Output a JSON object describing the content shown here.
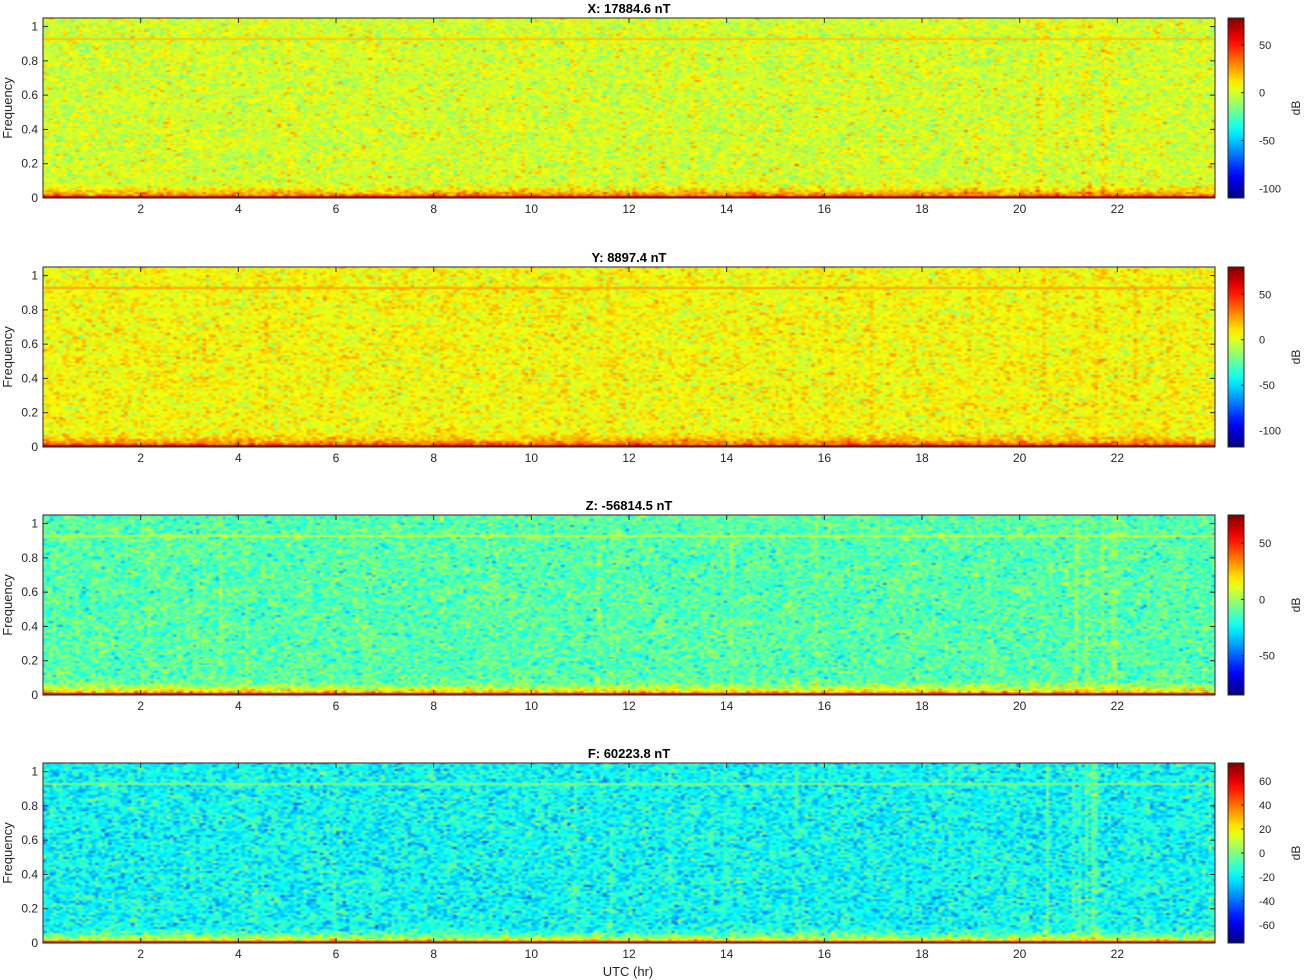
{
  "figure": {
    "shared_xlabel": "UTC (hr)"
  },
  "colormap": "jet",
  "chart_data": [
    {
      "type": "heatmap",
      "title": "X: 17884.6 nT",
      "xlabel": "",
      "ylabel": "Frequency",
      "colorbar_label": "dB",
      "x_range": [
        0,
        24
      ],
      "y_range": [
        0,
        1.05
      ],
      "x_ticks": [
        2,
        4,
        6,
        8,
        10,
        12,
        14,
        16,
        18,
        20,
        22
      ],
      "y_ticks": [
        0,
        0.2,
        0.4,
        0.6,
        0.8,
        1
      ],
      "clim": [
        -110,
        78
      ],
      "colorbar_ticks": [
        -100,
        -50,
        0,
        50
      ],
      "background_level_db": 0,
      "low_frequency_level_db": 45,
      "line_frequency": 0.93
    },
    {
      "type": "heatmap",
      "title": "Y: 8897.4 nT",
      "xlabel": "",
      "ylabel": "Frequency",
      "colorbar_label": "dB",
      "x_range": [
        0,
        24
      ],
      "y_range": [
        0,
        1.05
      ],
      "x_ticks": [
        2,
        4,
        6,
        8,
        10,
        12,
        14,
        16,
        18,
        20,
        22
      ],
      "y_ticks": [
        0,
        0.2,
        0.4,
        0.6,
        0.8,
        1
      ],
      "clim": [
        -118,
        80
      ],
      "colorbar_ticks": [
        -100,
        -50,
        0,
        50
      ],
      "background_level_db": 5,
      "low_frequency_level_db": 48,
      "line_frequency": 0.93
    },
    {
      "type": "heatmap",
      "title": "Z: -56814.5 nT",
      "xlabel": "",
      "ylabel": "Frequency",
      "colorbar_label": "dB",
      "x_range": [
        0,
        24
      ],
      "y_range": [
        0,
        1.05
      ],
      "x_ticks": [
        2,
        4,
        6,
        8,
        10,
        12,
        14,
        16,
        18,
        20,
        22
      ],
      "y_ticks": [
        0,
        0.2,
        0.4,
        0.6,
        0.8,
        1
      ],
      "clim": [
        -85,
        75
      ],
      "colorbar_ticks": [
        -50,
        0,
        50
      ],
      "background_level_db": -12,
      "low_frequency_level_db": 38,
      "line_frequency": 0.93
    },
    {
      "type": "heatmap",
      "title": "F: 60223.8 nT",
      "xlabel": "UTC (hr)",
      "ylabel": "Frequency",
      "colorbar_label": "dB",
      "x_range": [
        0,
        24
      ],
      "y_range": [
        0,
        1.05
      ],
      "x_ticks": [
        2,
        4,
        6,
        8,
        10,
        12,
        14,
        16,
        18,
        20,
        22
      ],
      "y_ticks": [
        0,
        0.2,
        0.4,
        0.6,
        0.8,
        1
      ],
      "clim": [
        -75,
        75
      ],
      "colorbar_ticks": [
        -60,
        -40,
        -20,
        0,
        20,
        40,
        60
      ],
      "background_level_db": -18,
      "low_frequency_level_db": 30,
      "line_frequency": 0.93
    }
  ]
}
